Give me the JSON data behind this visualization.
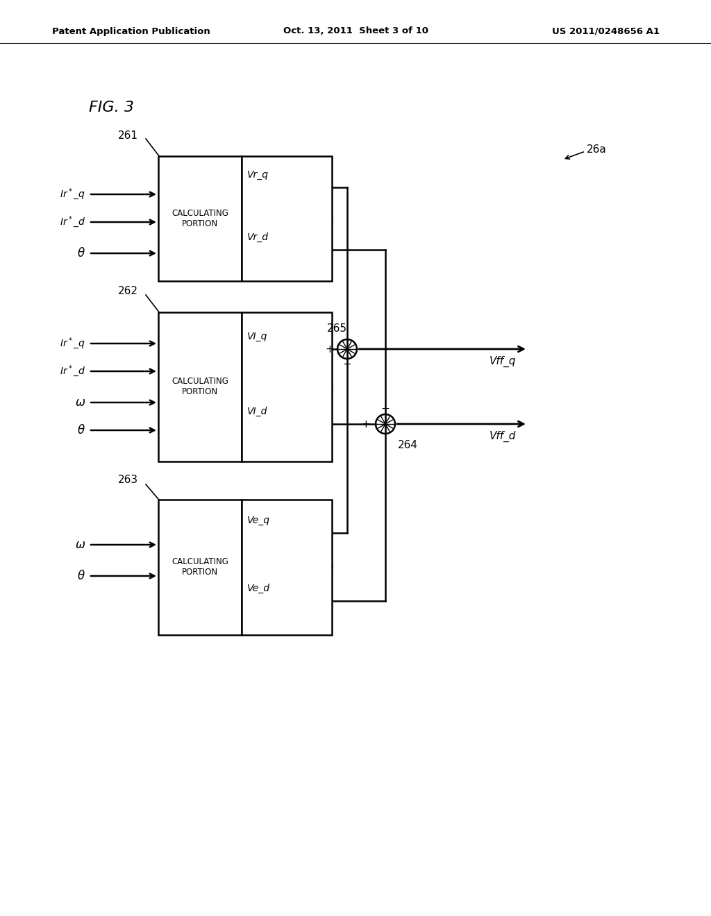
{
  "header_left": "Patent Application Publication",
  "header_center": "Oct. 13, 2011  Sheet 3 of 10",
  "header_right": "US 2011/0248656 A1",
  "bg_color": "#ffffff",
  "line_color": "#000000",
  "fig_label": "FIG. 3",
  "label_26a": "26a",
  "label_261": "261",
  "label_262": "262",
  "label_263": "263",
  "label_264": "264",
  "label_265": "265"
}
